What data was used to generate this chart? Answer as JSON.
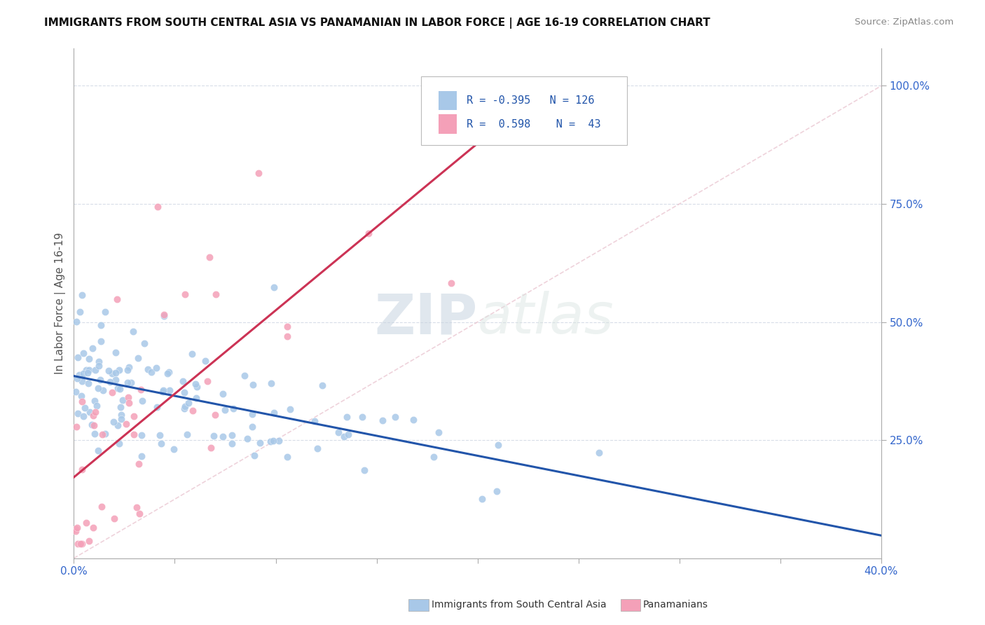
{
  "title": "IMMIGRANTS FROM SOUTH CENTRAL ASIA VS PANAMANIAN IN LABOR FORCE | AGE 16-19 CORRELATION CHART",
  "source": "Source: ZipAtlas.com",
  "ylabel": "In Labor Force | Age 16-19",
  "r_blue": -0.395,
  "n_blue": 126,
  "r_pink": 0.598,
  "n_pink": 43,
  "xlim": [
    0.0,
    0.4
  ],
  "ylim": [
    0.0,
    1.08
  ],
  "right_yticks": [
    0.25,
    0.5,
    0.75,
    1.0
  ],
  "right_yticklabels": [
    "25.0%",
    "50.0%",
    "75.0%",
    "100.0%"
  ],
  "xtick_labels": [
    "0.0%",
    "",
    "",
    "",
    "",
    "",
    "",
    "",
    "40.0%"
  ],
  "xtick_vals": [
    0.0,
    0.05,
    0.1,
    0.15,
    0.2,
    0.25,
    0.3,
    0.35,
    0.4
  ],
  "blue_color": "#a8c8e8",
  "pink_color": "#f4a0b8",
  "blue_line_color": "#2255aa",
  "pink_line_color": "#cc3355",
  "blue_scatter_seed": 42,
  "pink_scatter_seed": 99
}
